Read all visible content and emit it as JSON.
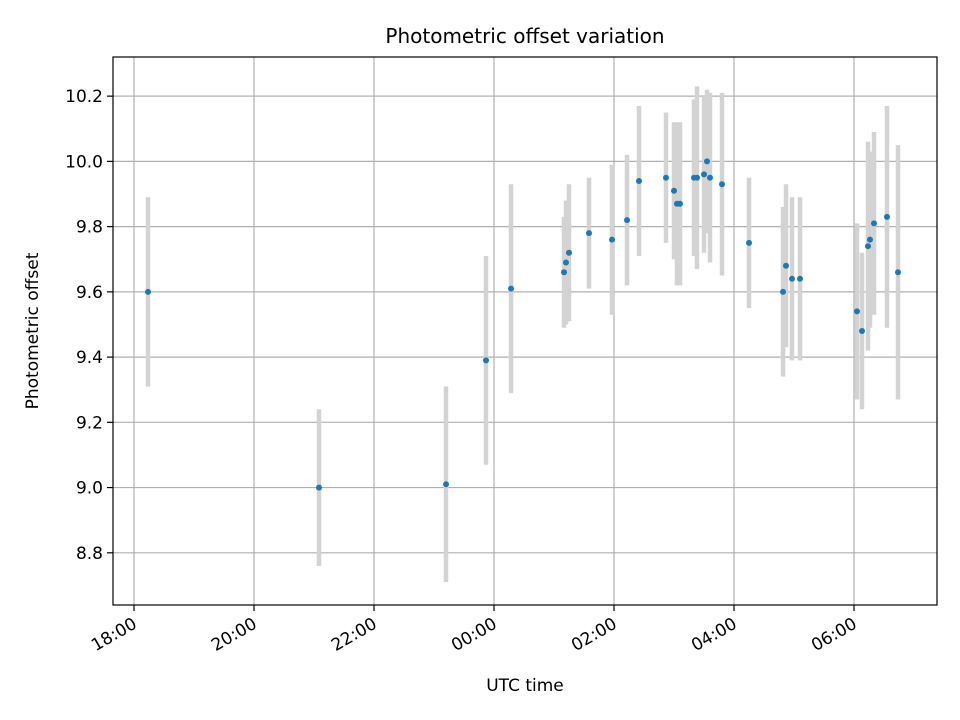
{
  "chart_data": {
    "type": "scatter",
    "title": "Photometric offset variation",
    "xlabel": "UTC time",
    "ylabel": "Photometric offset",
    "grid": true,
    "xlim": [
      "17:39",
      "07:23"
    ],
    "ylim": [
      8.64,
      10.32
    ],
    "xticks": [
      {
        "value": "18:00",
        "label": "18:00"
      },
      {
        "value": "20:00",
        "label": "20:00"
      },
      {
        "value": "22:00",
        "label": "22:00"
      },
      {
        "value": "00:00",
        "label": "00:00"
      },
      {
        "value": "02:00",
        "label": "02:00"
      },
      {
        "value": "04:00",
        "label": "04:00"
      },
      {
        "value": "06:00",
        "label": "06:00"
      }
    ],
    "yticks": [
      "8.8",
      "9.0",
      "9.2",
      "9.4",
      "9.6",
      "9.8",
      "10.0",
      "10.2"
    ],
    "marker_color": "#1f77b4",
    "errorbar_color": "#d3d3d3",
    "series": [
      {
        "points": [
          {
            "x": "18:14",
            "y": 9.6,
            "err": 0.29
          },
          {
            "x": "21:05",
            "y": 9.0,
            "err": 0.24
          },
          {
            "x": "23:12",
            "y": 9.01,
            "err": 0.3
          },
          {
            "x": "23:52",
            "y": 9.39,
            "err": 0.32
          },
          {
            "x": "00:17",
            "y": 9.61,
            "err": 0.32
          },
          {
            "x": "01:10",
            "y": 9.66,
            "err": 0.17
          },
          {
            "x": "01:12",
            "y": 9.69,
            "err": 0.19
          },
          {
            "x": "01:15",
            "y": 9.72,
            "err": 0.21
          },
          {
            "x": "01:35",
            "y": 9.78,
            "err": 0.17
          },
          {
            "x": "01:58",
            "y": 9.76,
            "err": 0.23
          },
          {
            "x": "02:13",
            "y": 9.82,
            "err": 0.2
          },
          {
            "x": "02:25",
            "y": 9.94,
            "err": 0.23
          },
          {
            "x": "02:52",
            "y": 9.95,
            "err": 0.2
          },
          {
            "x": "03:00",
            "y": 9.91,
            "err": 0.21
          },
          {
            "x": "03:03",
            "y": 9.87,
            "err": 0.25
          },
          {
            "x": "03:06",
            "y": 9.87,
            "err": 0.25
          },
          {
            "x": "03:20",
            "y": 9.95,
            "err": 0.24
          },
          {
            "x": "03:23",
            "y": 9.95,
            "err": 0.28
          },
          {
            "x": "03:30",
            "y": 9.96,
            "err": 0.24
          },
          {
            "x": "03:33",
            "y": 10.0,
            "err": 0.22
          },
          {
            "x": "03:36",
            "y": 9.95,
            "err": 0.26
          },
          {
            "x": "03:48",
            "y": 9.93,
            "err": 0.28
          },
          {
            "x": "04:15",
            "y": 9.75,
            "err": 0.2
          },
          {
            "x": "04:49",
            "y": 9.6,
            "err": 0.26
          },
          {
            "x": "04:52",
            "y": 9.68,
            "err": 0.25
          },
          {
            "x": "04:58",
            "y": 9.64,
            "err": 0.25
          },
          {
            "x": "05:06",
            "y": 9.64,
            "err": 0.25
          },
          {
            "x": "06:03",
            "y": 9.54,
            "err": 0.27
          },
          {
            "x": "06:08",
            "y": 9.48,
            "err": 0.24
          },
          {
            "x": "06:14",
            "y": 9.74,
            "err": 0.32
          },
          {
            "x": "06:16",
            "y": 9.76,
            "err": 0.27
          },
          {
            "x": "06:20",
            "y": 9.81,
            "err": 0.28
          },
          {
            "x": "06:33",
            "y": 9.83,
            "err": 0.34
          },
          {
            "x": "06:44",
            "y": 9.66,
            "err": 0.39
          }
        ]
      }
    ]
  }
}
